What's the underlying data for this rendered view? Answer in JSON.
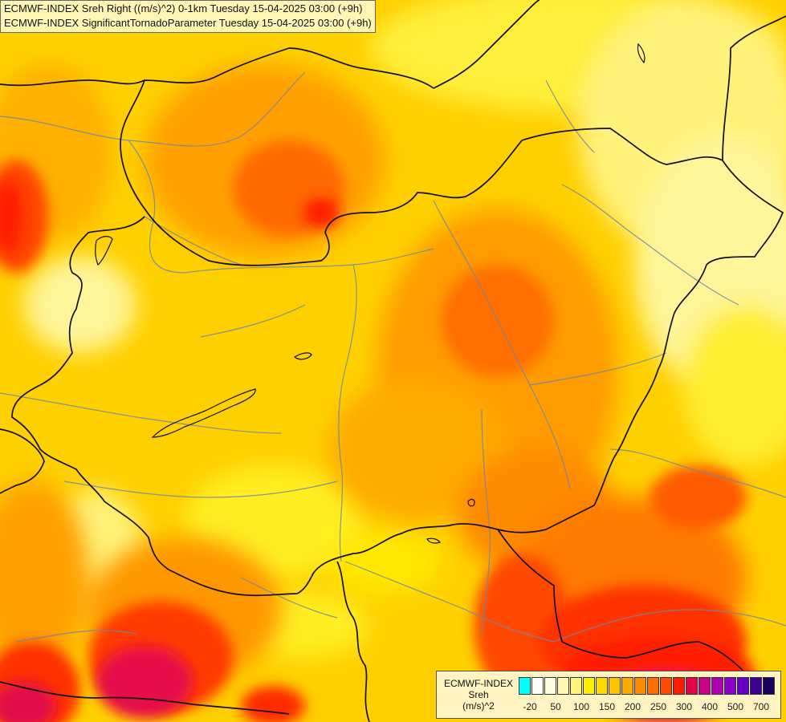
{
  "title": {
    "line1": "ECMWF-INDEX Sreh Right ((m/s)^2) 0-1km Tuesday 15-04-2025 03:00 (+9h)",
    "line2": "ECMWF-INDEX SignificantTornadoParameter Tuesday 15-04-2025 03:00 (+9h)"
  },
  "legend": {
    "model": "ECMWF-INDEX",
    "field": "Sreh",
    "unit": "(m/s)^2",
    "colors": [
      "#00ffff",
      "#ffffff",
      "#fffde0",
      "#fff8b0",
      "#fff37a",
      "#ffee00",
      "#ffd800",
      "#ffc400",
      "#ffaa00",
      "#ff8c00",
      "#ff6e00",
      "#ff4c00",
      "#ff1a00",
      "#e6004d",
      "#cc0088",
      "#b000b0",
      "#8c00cc",
      "#6400c8",
      "#3c0096",
      "#1a005a"
    ],
    "ticks": [
      "-20",
      "50",
      "100",
      "150",
      "200",
      "250",
      "300",
      "400",
      "500",
      "700"
    ]
  }
}
